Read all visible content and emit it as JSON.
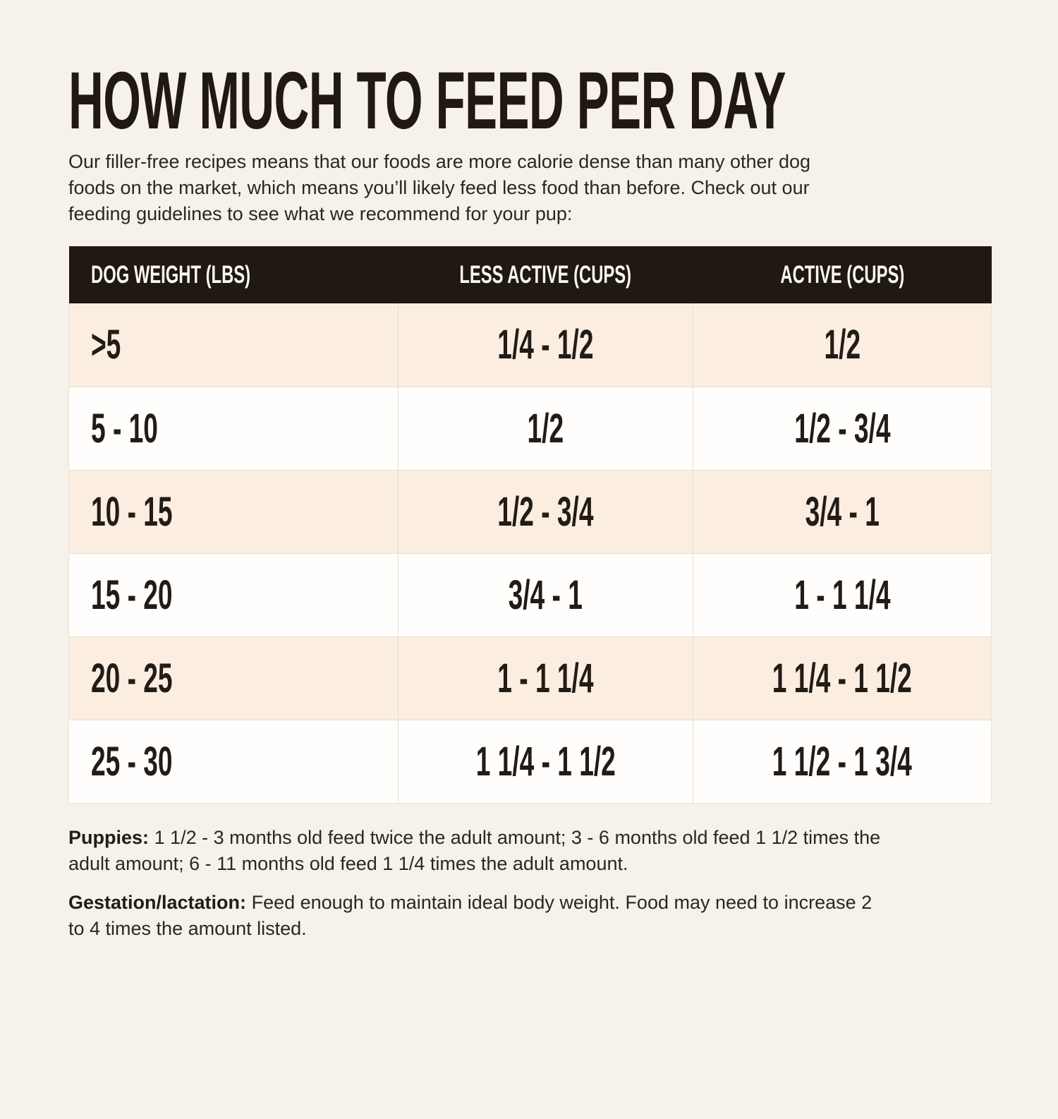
{
  "title": "HOW MUCH TO FEED PER DAY",
  "intro": {
    "lines": [
      "Our filler-free recipes means that our foods are more calorie dense than many other dog",
      "foods on the market, which means you’ll likely feed less food than before. Check out our",
      "feeding guidelines to see what we recommend for your pup:"
    ]
  },
  "table": {
    "columns": [
      "DOG WEIGHT (LBS)",
      "LESS ACTIVE (CUPS)",
      "ACTIVE (CUPS)"
    ],
    "rows": [
      [
        ">5",
        "1/4 - 1/2",
        "1/2"
      ],
      [
        "5 - 10",
        "1/2",
        "1/2 - 3/4"
      ],
      [
        "10 - 15",
        "1/2 - 3/4",
        "3/4 - 1"
      ],
      [
        "15 - 20",
        "3/4 - 1",
        "1 - 1 1/4"
      ],
      [
        "20 - 25",
        "1 - 1 1/4",
        "1 1/4 - 1 1/2"
      ],
      [
        "25 - 30",
        "1 1/4 - 1 1/2",
        "1 1/2 - 1 3/4"
      ]
    ]
  },
  "notes": [
    {
      "label": "Puppies:",
      "lines": [
        "1 1/2 - 3 months old feed twice the adult amount; 3 - 6 months old feed 1 1/2 times the",
        "adult amount; 6 - 11 months old feed 1 1/4 times the adult amount."
      ]
    },
    {
      "label": "Gestation/lactation:",
      "lines": [
        "Feed enough to maintain ideal body weight. Food may need to increase 2",
        "to 4 times the amount listed."
      ]
    }
  ],
  "colors": {
    "page_bg": "#f6f1e9",
    "header_bg": "#1f1813",
    "row_alt_bg": "#fbeee1",
    "row_bg": "#fffefc",
    "text": "#221c17"
  }
}
